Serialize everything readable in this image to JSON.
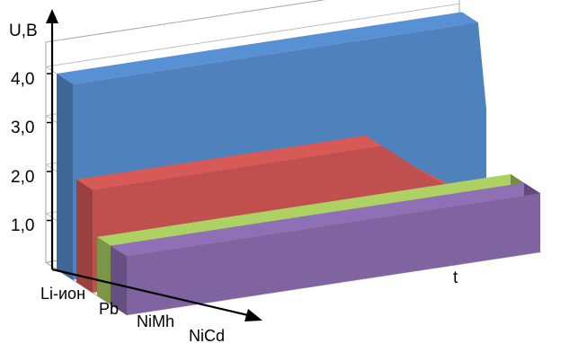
{
  "chart_data": {
    "type": "area",
    "style": "3d-ribbons",
    "ylabel": "U,B",
    "xlabel": "t",
    "ylim": [
      0,
      4.5
    ],
    "yticks": [
      1.0,
      2.0,
      3.0,
      4.0
    ],
    "ytick_labels": [
      "1,0",
      "2,0",
      "3,0",
      "4,0"
    ],
    "grid": true,
    "legend": "none",
    "x_fraction_note": "",
    "series": [
      {
        "name": "Li-ион",
        "color": "#4F81BD",
        "points": [
          [
            0,
            4.0
          ],
          [
            0.98,
            4.0
          ],
          [
            1.0,
            2.2
          ]
        ]
      },
      {
        "name": "Pb",
        "color": "#C0504D",
        "points": [
          [
            0,
            2.1
          ],
          [
            0.7,
            2.1
          ],
          [
            0.82,
            1.3
          ],
          [
            1.0,
            0.3
          ]
        ]
      },
      {
        "name": "NiMh",
        "color": "#9BBB59",
        "points": [
          [
            0,
            1.2
          ],
          [
            1.0,
            1.2
          ]
        ]
      },
      {
        "name": "NiCd",
        "color": "#8064A2",
        "points": [
          [
            0,
            1.2
          ],
          [
            1.0,
            1.2
          ]
        ]
      }
    ]
  }
}
